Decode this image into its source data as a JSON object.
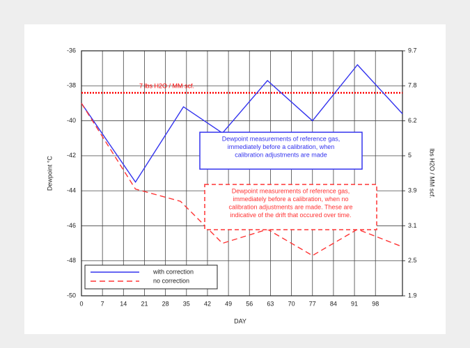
{
  "chart_data": {
    "type": "line",
    "xlabel": "DAY",
    "ylabel": "Dewpoint °C",
    "y2label": "lbs H2O / MM scf.",
    "xlim": [
      0,
      107
    ],
    "xticks": [
      0,
      7,
      14,
      21,
      28,
      35,
      42,
      49,
      56,
      63,
      70,
      77,
      84,
      91,
      98
    ],
    "ylim": [
      -50,
      -36
    ],
    "yticks": [
      -50,
      -48,
      -46,
      -44,
      -42,
      -40,
      -38,
      -36
    ],
    "y2ticks": [
      1.9,
      2.5,
      3.1,
      3.9,
      5.0,
      6.2,
      7.8,
      9.7
    ],
    "grid": true,
    "legend": "lower left",
    "series": [
      {
        "name": "with correction",
        "color": "#3333ee",
        "dash": "solid",
        "x": [
          0,
          18,
          34,
          47,
          62,
          77,
          92,
          107
        ],
        "values": [
          -39,
          -43.5,
          -39.2,
          -40.7,
          -37.7,
          -40,
          -36.8,
          -39.6
        ]
      },
      {
        "name": "no correction",
        "color": "#ff3333",
        "dash": "dashed",
        "x": [
          0,
          18,
          33,
          47,
          62,
          77,
          92,
          107
        ],
        "values": [
          -39,
          -43.9,
          -44.6,
          -47,
          -46.2,
          -47.7,
          -46.2,
          -47.2
        ]
      }
    ],
    "reference_line": {
      "value": -38.4,
      "label": "7 lbs H2O / MM scf.",
      "color": "#ff0000"
    },
    "annotations": [
      {
        "color": "#3333ee",
        "lines": [
          "Dewpoint measurements of reference gas,",
          "immediately before a calibration, when",
          "calibration adjustments are made"
        ]
      },
      {
        "color": "#ff3333",
        "lines": [
          "Dewpoint measurements of reference gas,",
          "immediately before a calibration, when no",
          "calibration adjustments are made. These are",
          "indicative of the drift that occured over time."
        ]
      }
    ]
  }
}
